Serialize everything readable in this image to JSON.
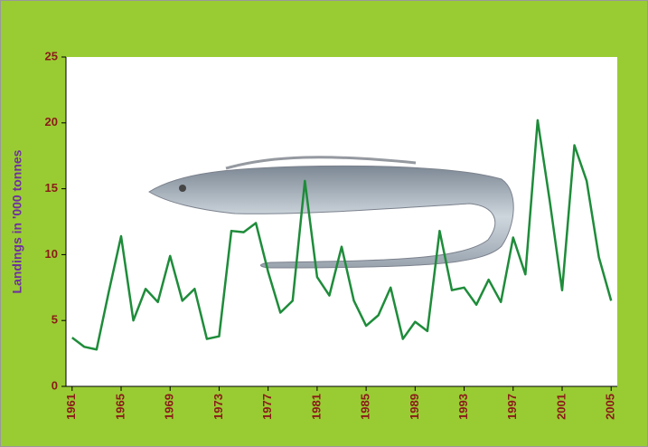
{
  "chart_data": {
    "type": "line",
    "y_label": "Landings in '000 tonnes",
    "x": [
      1961,
      1962,
      1963,
      1964,
      1965,
      1966,
      1967,
      1968,
      1969,
      1970,
      1971,
      1972,
      1973,
      1974,
      1975,
      1976,
      1977,
      1978,
      1979,
      1980,
      1981,
      1982,
      1983,
      1984,
      1985,
      1986,
      1987,
      1988,
      1989,
      1990,
      1991,
      1992,
      1993,
      1994,
      1995,
      1996,
      1997,
      1998,
      1999,
      2000,
      2001,
      2002,
      2003,
      2004,
      2005
    ],
    "values": [
      3.7,
      3.0,
      2.8,
      7.2,
      11.4,
      5.0,
      7.4,
      6.4,
      9.9,
      6.5,
      7.4,
      3.6,
      3.8,
      11.8,
      11.7,
      12.4,
      8.7,
      5.6,
      6.5,
      15.6,
      8.3,
      6.9,
      10.6,
      6.5,
      4.6,
      5.4,
      7.5,
      3.6,
      4.9,
      4.2,
      11.8,
      7.3,
      7.5,
      6.2,
      8.1,
      6.4,
      11.3,
      8.5,
      20.2,
      14.0,
      7.3,
      18.3,
      15.6,
      9.8,
      6.5
    ],
    "color": "#1e8c3a",
    "xlim": [
      1960.5,
      2005.5
    ],
    "xticks": [
      1961,
      1965,
      1969,
      1973,
      1977,
      1981,
      1985,
      1989,
      1993,
      1997,
      2001,
      2005
    ],
    "ylim": [
      0,
      25
    ],
    "yticks": [
      0,
      5,
      10,
      15,
      20,
      25
    ]
  }
}
